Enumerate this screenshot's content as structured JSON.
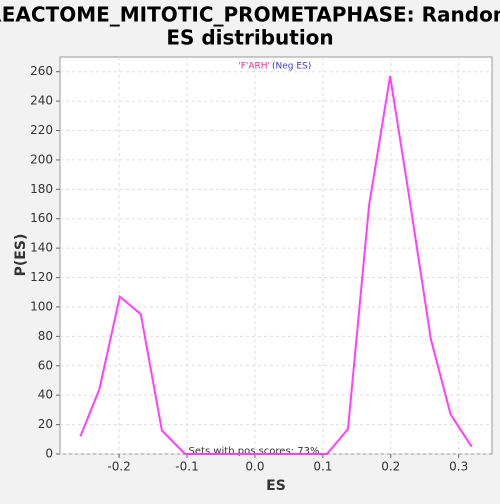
{
  "chart_data": {
    "type": "line",
    "title": "REACTOME_MITOTIC_PROMETAPHASE: Random ES distribution",
    "subtitle": "(Neg ES)",
    "x_label": "ES",
    "y_label": "P(ES)",
    "annotation": "Sets with pos scores: 73%",
    "x": [
      -0.257,
      -0.229,
      -0.199,
      -0.168,
      -0.137,
      -0.103,
      -0.072,
      -0.041,
      -0.01,
      0.021,
      0.052,
      0.083,
      0.106,
      0.137,
      0.168,
      0.199,
      0.226,
      0.259,
      0.288,
      0.319
    ],
    "series": [
      {
        "name": "'F'ARH'",
        "color": "#ff40ff",
        "values": [
          12,
          44,
          107,
          95,
          16,
          0,
          0,
          0,
          0,
          0,
          0,
          0,
          0,
          17,
          169,
          257,
          178,
          78,
          27,
          5
        ]
      }
    ],
    "xlim": [
      -0.287,
      0.349
    ],
    "ylim": [
      0,
      270
    ],
    "xticks": [
      -0.2,
      -0.1,
      {
        "value": 0,
        "label": "0.0"
      },
      0.1,
      0.2,
      0.3
    ],
    "yticks": [
      0,
      20,
      40,
      60,
      80,
      100,
      120,
      140,
      160,
      180,
      200,
      220,
      240,
      260
    ],
    "grid": true
  }
}
